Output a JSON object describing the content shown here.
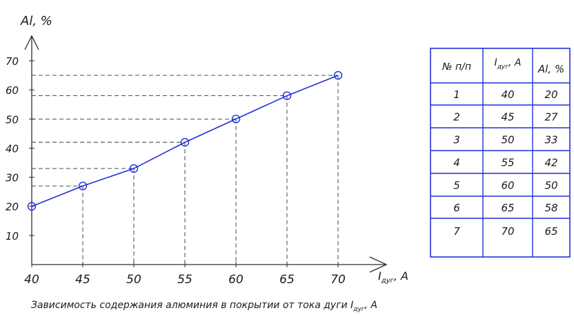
{
  "chart_data": {
    "type": "line",
    "ylabel": "Al, %",
    "xlabel_main": "I",
    "xlabel_sub": "дуг",
    "xlabel_unit": ", A",
    "x": [
      40,
      45,
      50,
      55,
      60,
      65,
      70
    ],
    "series": [
      {
        "values": [
          20,
          27,
          33,
          42,
          50,
          58,
          65
        ]
      }
    ],
    "x_ticks": [
      "40",
      "45",
      "50",
      "55",
      "60",
      "65",
      "70"
    ],
    "y_ticks": [
      "10",
      "20",
      "30",
      "40",
      "50",
      "60",
      "70"
    ],
    "xlim": [
      40,
      70
    ],
    "ylim": [
      0,
      70
    ],
    "caption_main": "Зависимость содержания алюминия в покрытии от тока дуги I",
    "caption_sub": "дуг",
    "caption_unit": ", A",
    "colors": {
      "series": "#1f2fd8",
      "axes": "#2a2a2a"
    }
  },
  "table": {
    "headers": [
      "№ п/п",
      "Iдуг, A",
      "Al, %"
    ],
    "header_sub": "дуг",
    "rows": [
      [
        "1",
        "40",
        "20"
      ],
      [
        "2",
        "45",
        "27"
      ],
      [
        "3",
        "50",
        "33"
      ],
      [
        "4",
        "55",
        "42"
      ],
      [
        "5",
        "60",
        "50"
      ],
      [
        "6",
        "65",
        "58"
      ],
      [
        "7",
        "70",
        "65"
      ]
    ],
    "colors": {
      "border": "#1f2fd8"
    }
  }
}
